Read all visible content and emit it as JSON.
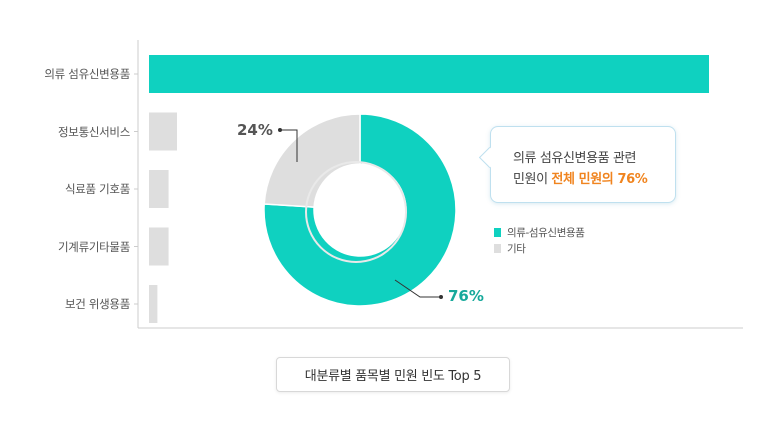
{
  "chart_data": [
    {
      "type": "bar",
      "orientation": "horizontal",
      "title": "대분류별 품목별 민원 빈도 Top 5",
      "categories": [
        "의류 섬유신변용품",
        "정보통신서비스",
        "식료품 기호품",
        "기계류기타물품",
        "보건 위생용품"
      ],
      "values": [
        100,
        5,
        3.5,
        3.5,
        1.5
      ],
      "value_scale": "relative",
      "colors": [
        "#0fd1c0",
        "#dedede",
        "#dedede",
        "#dedede",
        "#dedede"
      ]
    },
    {
      "type": "pie",
      "donut": true,
      "labels": [
        "의류-섬유신변용품",
        "기타"
      ],
      "values": [
        76,
        24
      ],
      "value_labels": [
        "76%",
        "24%"
      ],
      "colors": [
        "#0fd1c0",
        "#dedede"
      ],
      "label_colors": [
        "#17a99b",
        "#555555"
      ]
    }
  ],
  "callout": {
    "line1": "의류 섬유신변용품 관련",
    "line2_prefix": "민원이 ",
    "line2_highlight": "전체 민원의 76%"
  },
  "legend": [
    {
      "label": "의류-섬유신변용품",
      "color": "#0fd1c0"
    },
    {
      "label": "기타",
      "color": "#dedede"
    }
  ],
  "axis_color": "#cccccc"
}
